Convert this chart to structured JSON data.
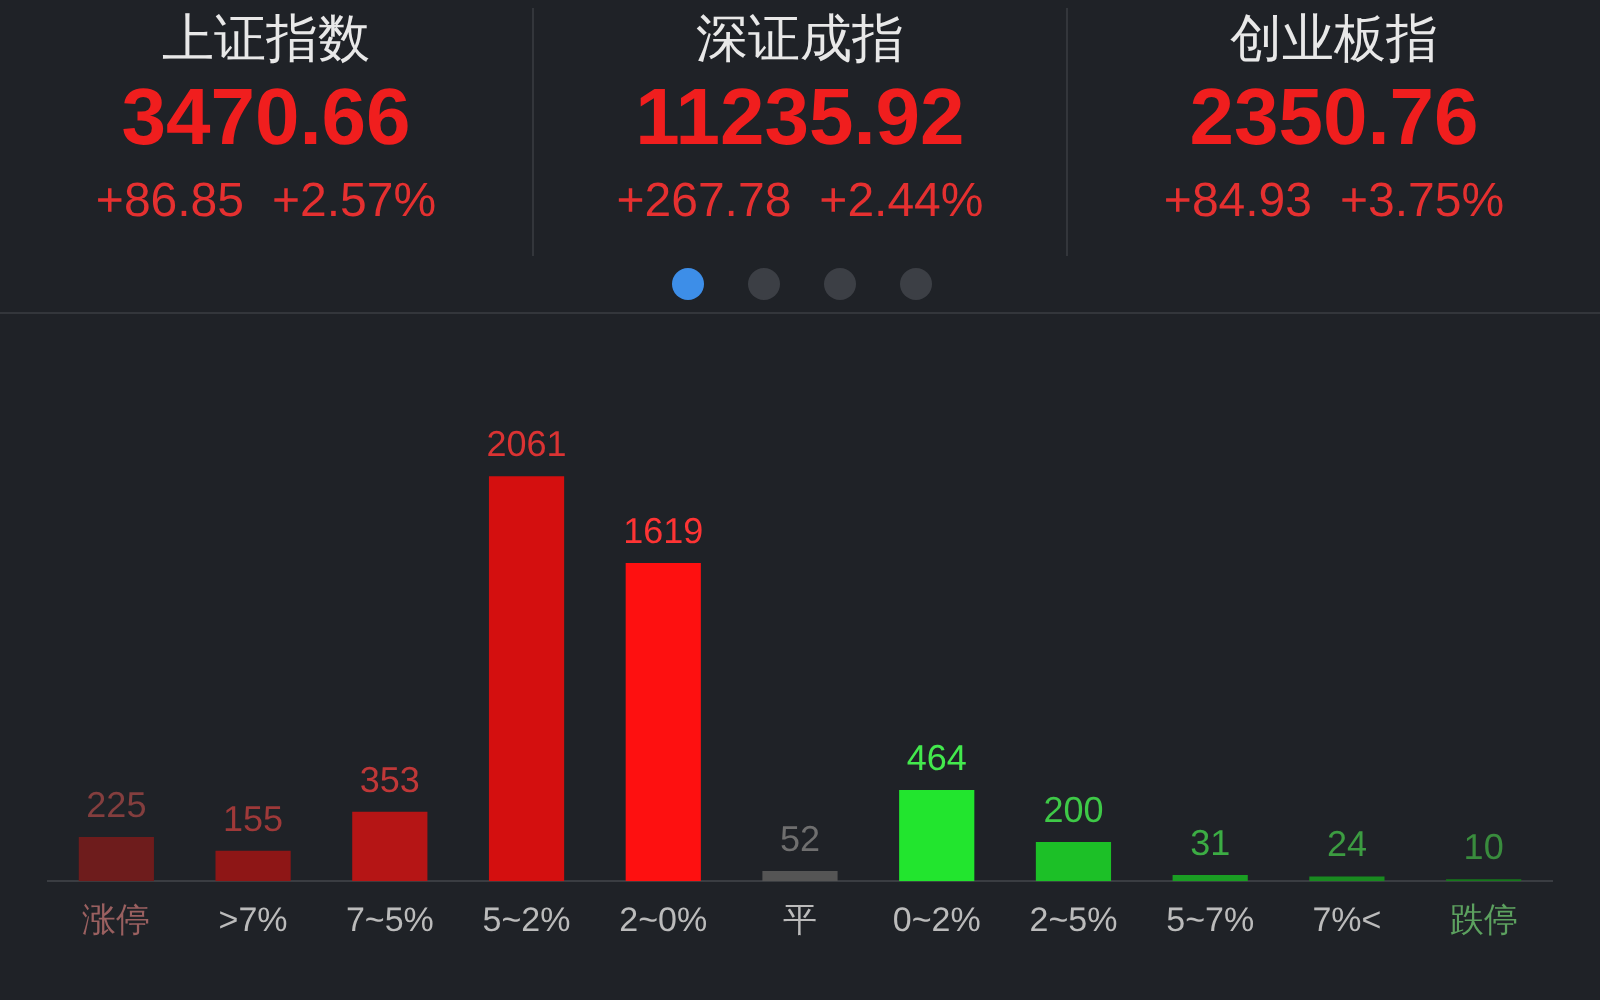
{
  "chart_data": {
    "type": "bar",
    "categories": [
      "涨停",
      ">7%",
      "7~5%",
      "5~2%",
      "2~0%",
      "平",
      "0~2%",
      "2~5%",
      "5~7%",
      "7%<",
      "跌停"
    ],
    "values": [
      225,
      155,
      353,
      2061,
      1619,
      52,
      464,
      200,
      31,
      24,
      10
    ],
    "colors": [
      "#6e1c1c",
      "#8e1616",
      "#b51515",
      "#d40f0f",
      "#fe1010",
      "#555555",
      "#22e52e",
      "#1cc027",
      "#1a9e23",
      "#198a20",
      "#16781b"
    ],
    "data_labels": true,
    "grid": false,
    "legend": false,
    "annotations": [
      "上证指数",
      "3470.66",
      "+86.85",
      "+2.57%",
      "深证成指",
      "11235.92",
      "+267.78",
      "+2.44%",
      "创业板指",
      "2350.76",
      "+84.93",
      "+3.75%"
    ]
  }
}
